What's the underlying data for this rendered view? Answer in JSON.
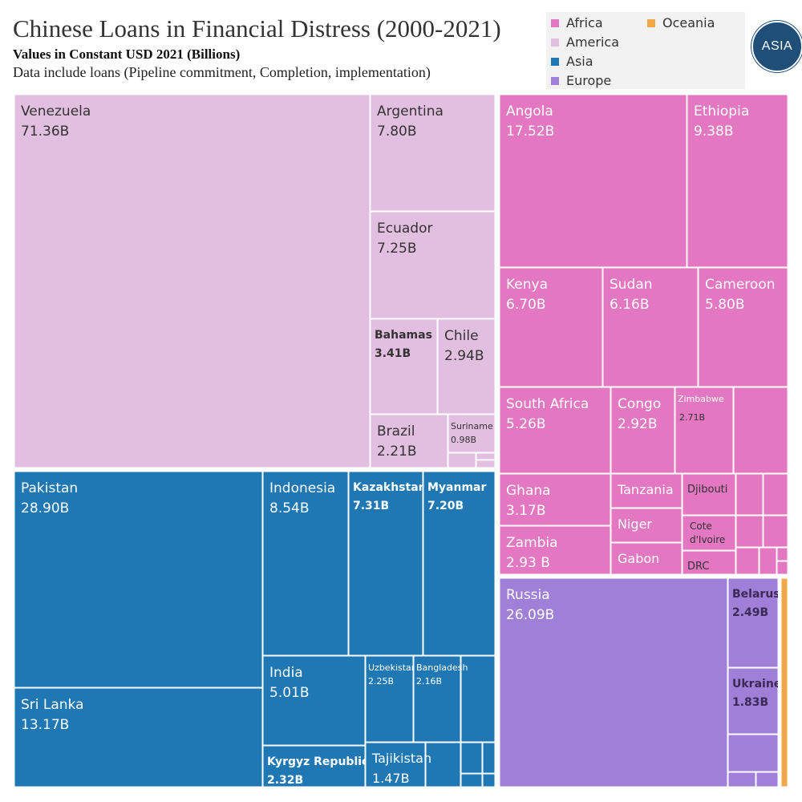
{
  "header": {
    "title": "Chinese Loans in Financial Distress (2000-2021)",
    "subtitle": "Values in Constant USD 2021 (Billions)",
    "note": "Data include loans (Pipeline commitment, Completion, implementation)",
    "logo_text": "ASIA"
  },
  "legend": [
    {
      "name": "Africa",
      "color": "#e377c2"
    },
    {
      "name": "America",
      "color": "#e2bfe0"
    },
    {
      "name": "Asia",
      "color": "#1f77b4"
    },
    {
      "name": "Europe",
      "color": "#a07fd9"
    },
    {
      "name": "Oceania",
      "color": "#f0a848"
    }
  ],
  "chart_data": {
    "type": "treemap",
    "unit": "USD Billions (constant 2021)",
    "groups": [
      {
        "name": "America",
        "color": "#e2bfe0",
        "items": [
          {
            "name": "Venezuela",
            "value": 71.36,
            "label": "71.36B"
          },
          {
            "name": "Argentina",
            "value": 7.8,
            "label": "7.80B"
          },
          {
            "name": "Ecuador",
            "value": 7.25,
            "label": "7.25B"
          },
          {
            "name": "Bahamas",
            "value": 3.41,
            "label": "3.41B"
          },
          {
            "name": "Chile",
            "value": 2.94,
            "label": "2.94B"
          },
          {
            "name": "Brazil",
            "value": 2.21,
            "label": "2.21B"
          },
          {
            "name": "Suriname",
            "value": 0.98,
            "label": "0.98B"
          }
        ]
      },
      {
        "name": "Africa",
        "color": "#e377c2",
        "items": [
          {
            "name": "Angola",
            "value": 17.52,
            "label": "17.52B"
          },
          {
            "name": "Ethiopia",
            "value": 9.38,
            "label": "9.38B"
          },
          {
            "name": "Kenya",
            "value": 6.7,
            "label": "6.70B"
          },
          {
            "name": "Sudan",
            "value": 6.16,
            "label": "6.16B"
          },
          {
            "name": "Cameroon",
            "value": 5.8,
            "label": "5.80B"
          },
          {
            "name": "South Africa",
            "value": 5.26,
            "label": "5.26B"
          },
          {
            "name": "Congo",
            "value": 2.92,
            "label": "2.92B"
          },
          {
            "name": "Zimbabwe",
            "value": 2.71,
            "label": "2.71B"
          },
          {
            "name": "Ghana",
            "value": 3.17,
            "label": "3.17B"
          },
          {
            "name": "Zambia",
            "value": 2.93,
            "label": "2.93 B"
          },
          {
            "name": "Tanzania",
            "value": null,
            "label": ""
          },
          {
            "name": "Niger",
            "value": null,
            "label": ""
          },
          {
            "name": "Gabon",
            "value": null,
            "label": ""
          },
          {
            "name": "Djibouti",
            "value": null,
            "label": ""
          },
          {
            "name": "Cote d'Ivoire",
            "value": null,
            "label": ""
          },
          {
            "name": "DRC",
            "value": null,
            "label": ""
          }
        ]
      },
      {
        "name": "Asia",
        "color": "#1f77b4",
        "items": [
          {
            "name": "Pakistan",
            "value": 28.9,
            "label": "28.90B"
          },
          {
            "name": "Sri Lanka",
            "value": 13.17,
            "label": "13.17B"
          },
          {
            "name": "Indonesia",
            "value": 8.54,
            "label": "8.54B"
          },
          {
            "name": "Kazakhstan",
            "value": 7.31,
            "label": "7.31B"
          },
          {
            "name": "Myanmar",
            "value": 7.2,
            "label": "7.20B"
          },
          {
            "name": "India",
            "value": 5.01,
            "label": "5.01B"
          },
          {
            "name": "Uzbekistan",
            "value": 2.25,
            "label": "2.25B"
          },
          {
            "name": "Bangladesh",
            "value": 2.16,
            "label": "2.16B"
          },
          {
            "name": "Kyrgyz Republic",
            "value": 2.32,
            "label": "2.32B"
          },
          {
            "name": "Tajikistan",
            "value": 1.47,
            "label": "1.47B"
          }
        ]
      },
      {
        "name": "Europe",
        "color": "#a07fd9",
        "items": [
          {
            "name": "Russia",
            "value": 26.09,
            "label": "26.09B"
          },
          {
            "name": "Belarus",
            "value": 2.49,
            "label": "2.49B"
          },
          {
            "name": "Ukraine",
            "value": 1.83,
            "label": "1.83B"
          }
        ]
      },
      {
        "name": "Oceania",
        "color": "#f0a848",
        "items": []
      }
    ]
  }
}
